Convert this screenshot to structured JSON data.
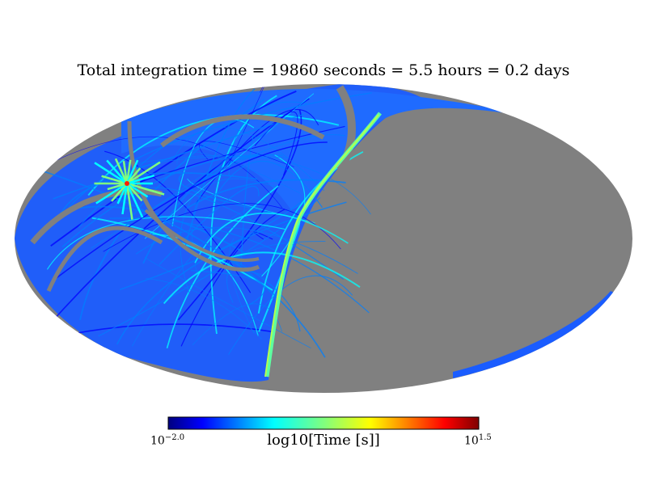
{
  "title": "Total integration time = 19860 seconds = 5.5 hours = 0.2 days",
  "colorbar": {
    "label": "log10[Time [s]]",
    "min_tick": {
      "base": "10",
      "exp": "−2.0"
    },
    "max_tick": {
      "base": "10",
      "exp": "1.5"
    },
    "colormap": [
      "#00007f",
      "#0000ff",
      "#007fff",
      "#00ffff",
      "#7fff7f",
      "#ffff00",
      "#ff7f00",
      "#ff0000",
      "#7f0000"
    ]
  },
  "chart_data": {
    "type": "heatmap",
    "projection": "mollweide",
    "title": "Total integration time = 19860 seconds = 5.5 hours = 0.2 days",
    "colorbar_label": "log10[Time [s]]",
    "color_range_log10": [
      -2.0,
      1.5
    ],
    "unobserved_color": "#808080",
    "hotspot": {
      "log10_time_max": 1.5
    }
  }
}
